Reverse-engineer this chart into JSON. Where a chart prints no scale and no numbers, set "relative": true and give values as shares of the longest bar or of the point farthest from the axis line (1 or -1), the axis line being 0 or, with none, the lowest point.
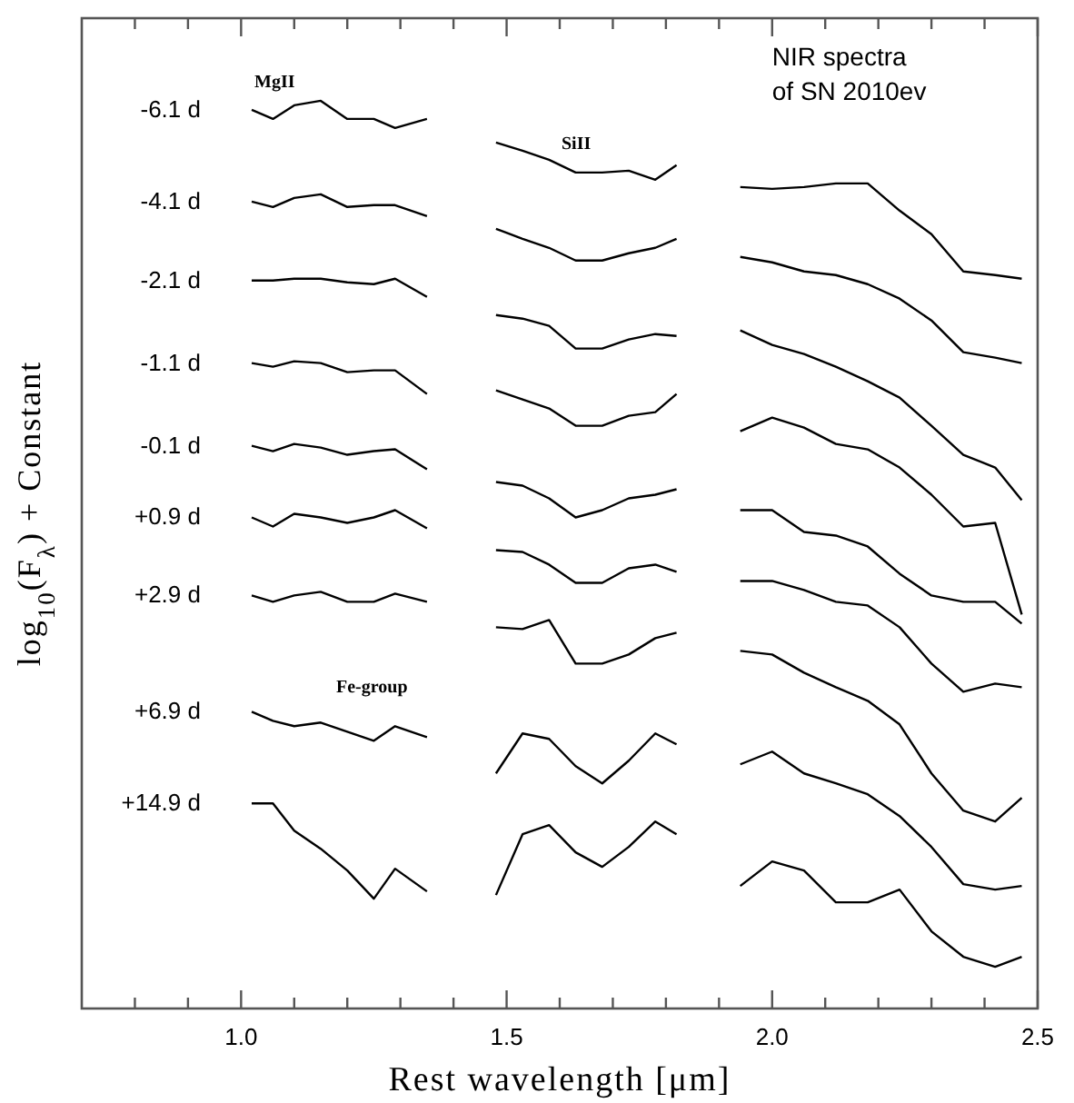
{
  "chart_data": {
    "type": "line",
    "title": "NIR spectra of SN 2010ev",
    "xlabel": "Rest wavelength [μm]",
    "ylabel": "log$_{10}$(F$_{λ}$) + Constant",
    "relative": true,
    "grid": false,
    "marker": "none",
    "line_style": "solid",
    "xlim": [
      0.7,
      2.5
    ],
    "xticks": [
      {
        "value": 0.8,
        "label": null
      },
      {
        "value": 0.9,
        "label": null
      },
      {
        "value": 1.0,
        "label": "1.0"
      },
      {
        "value": 1.1,
        "label": null
      },
      {
        "value": 1.2,
        "label": null
      },
      {
        "value": 1.3,
        "label": null
      },
      {
        "value": 1.4,
        "label": null
      },
      {
        "value": 1.5,
        "label": "1.5"
      },
      {
        "value": 1.6,
        "label": null
      },
      {
        "value": 1.7,
        "label": null
      },
      {
        "value": 1.8,
        "label": null
      },
      {
        "value": 1.9,
        "label": null
      },
      {
        "value": 2.0,
        "label": "2.0"
      },
      {
        "value": 2.1,
        "label": null
      },
      {
        "value": 2.2,
        "label": null
      },
      {
        "value": 2.3,
        "label": null
      },
      {
        "value": 2.4,
        "label": null
      },
      {
        "value": 2.5,
        "label": "2.5"
      }
    ],
    "x": [
      1.02,
      1.06,
      1.1,
      1.15,
      1.2,
      1.25,
      1.29,
      1.35,
      1.4,
      1.48,
      1.53,
      1.58,
      1.63,
      1.68,
      1.73,
      1.78,
      1.82,
      1.88,
      1.94,
      2.0,
      2.06,
      2.12,
      2.18,
      2.24,
      2.3,
      2.36,
      2.42,
      2.47
    ],
    "annotations": [
      "MgII",
      "SiII",
      "Fe-group"
    ],
    "series": [
      {
        "name": "-6.1 d",
        "color": "#000000",
        "values": [
          0.99,
          0.98,
          0.995,
          1,
          0.98,
          0.98,
          0.97,
          0.98,
          null,
          0.954,
          0.945,
          0.935,
          0.921,
          0.921,
          0.923,
          0.913,
          0.929,
          null,
          0.905,
          0.903,
          0.905,
          0.909,
          0.909,
          0.879,
          0.853,
          0.812,
          0.808,
          0.804
        ]
      },
      {
        "name": "-4.1 d",
        "color": "#000000",
        "values": [
          0.889,
          0.883,
          0.893,
          0.897,
          0.883,
          0.885,
          0.885,
          0.873,
          null,
          0.859,
          0.848,
          0.838,
          0.824,
          0.824,
          0.832,
          0.838,
          0.848,
          null,
          0.828,
          0.822,
          0.812,
          0.808,
          0.798,
          0.782,
          0.758,
          0.723,
          0.717,
          0.711
        ]
      },
      {
        "name": "-2.1 d",
        "color": "#000000",
        "values": [
          0.802,
          0.802,
          0.804,
          0.804,
          0.8,
          0.798,
          0.804,
          0.784,
          null,
          0.764,
          0.76,
          0.752,
          0.727,
          0.727,
          0.737,
          0.743,
          0.741,
          null,
          0.747,
          0.731,
          0.721,
          0.707,
          0.691,
          0.673,
          0.642,
          0.61,
          0.596,
          0.56
        ]
      },
      {
        "name": "-1.1 d",
        "color": "#000000",
        "values": [
          0.711,
          0.707,
          0.713,
          0.711,
          0.701,
          0.703,
          0.703,
          0.677,
          null,
          0.681,
          0.671,
          0.661,
          0.642,
          0.642,
          0.653,
          0.657,
          0.677,
          null,
          0.636,
          0.651,
          0.64,
          0.622,
          0.616,
          0.596,
          0.566,
          0.531,
          0.535,
          0.434
        ]
      },
      {
        "name": "-0.1 d",
        "color": "#000000",
        "values": [
          0.62,
          0.614,
          0.622,
          0.618,
          0.61,
          0.614,
          0.616,
          0.594,
          null,
          0.58,
          0.576,
          0.562,
          0.541,
          0.549,
          0.562,
          0.566,
          0.572,
          null,
          0.549,
          0.549,
          0.525,
          0.521,
          0.509,
          0.479,
          0.455,
          0.448,
          0.448,
          0.424
        ]
      },
      {
        "name": "+0.9 d",
        "color": "#000000",
        "values": [
          0.541,
          0.531,
          0.545,
          0.541,
          0.535,
          0.541,
          0.549,
          0.529,
          null,
          0.505,
          0.503,
          0.489,
          0.469,
          0.469,
          0.485,
          0.489,
          0.481,
          null,
          0.471,
          0.471,
          0.461,
          0.448,
          0.444,
          0.42,
          0.38,
          0.349,
          0.358,
          0.354
        ]
      },
      {
        "name": "+2.9 d",
        "color": "#000000",
        "values": [
          0.455,
          0.448,
          0.455,
          0.459,
          0.448,
          0.448,
          0.457,
          0.448,
          null,
          0.42,
          0.418,
          0.428,
          0.38,
          0.38,
          0.39,
          0.408,
          0.414,
          null,
          0.394,
          0.39,
          0.37,
          0.354,
          0.339,
          0.313,
          0.259,
          0.218,
          0.206,
          0.232
        ]
      },
      {
        "name": "+6.9 d",
        "color": "#000000",
        "values": [
          0.327,
          0.317,
          0.311,
          0.315,
          0.305,
          0.295,
          0.311,
          0.299,
          null,
          0.259,
          0.303,
          0.297,
          0.267,
          0.248,
          0.273,
          0.303,
          0.291,
          null,
          0.269,
          0.283,
          0.259,
          0.248,
          0.236,
          0.212,
          0.178,
          0.137,
          0.131,
          0.135
        ]
      },
      {
        "name": "+14.9 d",
        "color": "#000000",
        "values": [
          0.226,
          0.226,
          0.196,
          0.176,
          0.152,
          0.121,
          0.154,
          0.129,
          null,
          0.125,
          0.192,
          0.202,
          0.172,
          0.156,
          0.178,
          0.206,
          0.192,
          null,
          0.135,
          0.162,
          0.152,
          0.117,
          0.117,
          0.131,
          0.085,
          0.057,
          0.046,
          0.057
        ]
      }
    ]
  }
}
